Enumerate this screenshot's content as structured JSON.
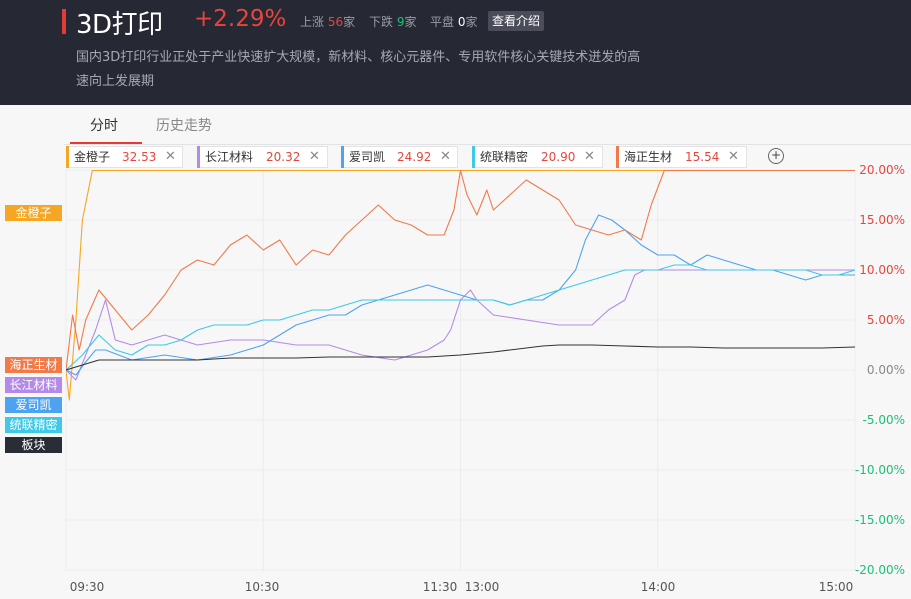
{
  "header": {
    "title": "3D打印",
    "change": "+2.29%",
    "up_label": "上涨",
    "up_count": "56",
    "up_unit": "家",
    "down_label": "下跌",
    "down_count": "9",
    "down_unit": "家",
    "flat_label": "平盘",
    "flat_count": "0",
    "flat_unit": "家",
    "intro_button": "查看介绍",
    "description_line1": "国内3D打印行业正处于产业快速扩大规模，新材料、核心元器件、专用软件核心关键技术迸发的高",
    "description_line2": "速向上发展期"
  },
  "tabs": [
    {
      "label": "分时"
    },
    {
      "label": "历史走势"
    }
  ],
  "chips": [
    {
      "name": "金橙子",
      "value": "32.53",
      "color": "#f5a623"
    },
    {
      "name": "长江材料",
      "value": "20.32",
      "color": "#b48ae8"
    },
    {
      "name": "爱司凯",
      "value": "24.92",
      "color": "#4da3f0"
    },
    {
      "name": "统联精密",
      "value": "20.90",
      "color": "#3ec9e6"
    },
    {
      "name": "海正生材",
      "value": "15.54",
      "color": "#f07a4a"
    }
  ],
  "side_labels": [
    {
      "name": "金橙子",
      "color": "#f5a623"
    },
    {
      "name": "海正生材",
      "color": "#f07a4a"
    },
    {
      "name": "长江材料",
      "color": "#b48ae8"
    },
    {
      "name": "爱司凯",
      "color": "#4da3f0"
    },
    {
      "name": "统联精密",
      "color": "#3ec9e6"
    },
    {
      "name": "板块",
      "color": "#2b2d36"
    }
  ],
  "chart_data": {
    "type": "line",
    "x_ticks": [
      "09:30",
      "10:30",
      "11:30",
      "13:00",
      "14:00",
      "15:00"
    ],
    "ylim": [
      -20,
      20
    ],
    "y_ticks": [
      "20.00%",
      "15.00%",
      "10.00%",
      "5.00%",
      "0.00%",
      "-5.00%",
      "-10.00%",
      "-15.00%",
      "-20.00%"
    ],
    "grid": true,
    "series": [
      {
        "name": "金橙子",
        "color": "#f5a623",
        "points": [
          [
            0,
            0
          ],
          [
            1,
            -3
          ],
          [
            3,
            5
          ],
          [
            5,
            15
          ],
          [
            8,
            20
          ],
          [
            240,
            20
          ]
        ]
      },
      {
        "name": "海正生材",
        "color": "#f07a4a",
        "points": [
          [
            0,
            0
          ],
          [
            2,
            5.5
          ],
          [
            4,
            2
          ],
          [
            6,
            5
          ],
          [
            10,
            8
          ],
          [
            15,
            6
          ],
          [
            20,
            4
          ],
          [
            25,
            5.5
          ],
          [
            30,
            7.5
          ],
          [
            35,
            10
          ],
          [
            40,
            11
          ],
          [
            45,
            10.5
          ],
          [
            50,
            12.5
          ],
          [
            55,
            13.5
          ],
          [
            60,
            12
          ],
          [
            65,
            13
          ],
          [
            70,
            10.5
          ],
          [
            75,
            12
          ],
          [
            80,
            11.5
          ],
          [
            85,
            13.5
          ],
          [
            90,
            15
          ],
          [
            95,
            16.5
          ],
          [
            100,
            15
          ],
          [
            105,
            14.5
          ],
          [
            110,
            13.5
          ],
          [
            115,
            13.5
          ],
          [
            118,
            16
          ],
          [
            120,
            20
          ],
          [
            122,
            17.5
          ],
          [
            125,
            15.5
          ],
          [
            128,
            18
          ],
          [
            130,
            16
          ],
          [
            135,
            17.5
          ],
          [
            140,
            19
          ],
          [
            145,
            18
          ],
          [
            150,
            17
          ],
          [
            155,
            14.5
          ],
          [
            160,
            14
          ],
          [
            165,
            13.5
          ],
          [
            170,
            14
          ],
          [
            175,
            13
          ],
          [
            178,
            16.5
          ],
          [
            182,
            20.5
          ],
          [
            186,
            21.5
          ],
          [
            190,
            20.5
          ],
          [
            240,
            20.5
          ]
        ]
      },
      {
        "name": "长江材料",
        "color": "#b48ae8",
        "points": [
          [
            0,
            0
          ],
          [
            3,
            -1
          ],
          [
            6,
            1.5
          ],
          [
            9,
            4
          ],
          [
            12,
            7
          ],
          [
            15,
            3
          ],
          [
            20,
            2.5
          ],
          [
            30,
            3.5
          ],
          [
            40,
            2.5
          ],
          [
            50,
            3
          ],
          [
            60,
            3
          ],
          [
            70,
            2.5
          ],
          [
            80,
            2.5
          ],
          [
            90,
            1.5
          ],
          [
            100,
            1
          ],
          [
            105,
            1.5
          ],
          [
            110,
            2
          ],
          [
            115,
            3
          ],
          [
            117,
            4
          ],
          [
            120,
            7
          ],
          [
            123,
            8
          ],
          [
            125,
            7
          ],
          [
            130,
            5.5
          ],
          [
            140,
            5
          ],
          [
            150,
            4.5
          ],
          [
            160,
            4.5
          ],
          [
            165,
            6
          ],
          [
            170,
            7
          ],
          [
            173,
            9.5
          ],
          [
            176,
            10
          ],
          [
            240,
            10
          ]
        ]
      },
      {
        "name": "爱司凯",
        "color": "#4da3f0",
        "points": [
          [
            0,
            0
          ],
          [
            3,
            -0.5
          ],
          [
            6,
            0.8
          ],
          [
            9,
            2
          ],
          [
            12,
            2
          ],
          [
            20,
            1
          ],
          [
            30,
            1.5
          ],
          [
            40,
            1
          ],
          [
            50,
            1.5
          ],
          [
            60,
            2.5
          ],
          [
            70,
            4.5
          ],
          [
            80,
            5.5
          ],
          [
            85,
            5.5
          ],
          [
            90,
            6.5
          ],
          [
            95,
            7
          ],
          [
            100,
            7.5
          ],
          [
            105,
            8
          ],
          [
            110,
            8.5
          ],
          [
            115,
            8
          ],
          [
            120,
            7.5
          ],
          [
            125,
            7
          ],
          [
            130,
            7
          ],
          [
            135,
            6.5
          ],
          [
            140,
            7
          ],
          [
            145,
            7
          ],
          [
            150,
            8
          ],
          [
            155,
            10
          ],
          [
            158,
            13
          ],
          [
            162,
            15.5
          ],
          [
            166,
            15
          ],
          [
            170,
            14
          ],
          [
            175,
            12.5
          ],
          [
            180,
            11.5
          ],
          [
            185,
            11.5
          ],
          [
            190,
            10.5
          ],
          [
            195,
            11.5
          ],
          [
            200,
            11
          ],
          [
            205,
            10.5
          ],
          [
            210,
            10
          ],
          [
            215,
            10
          ],
          [
            220,
            9.5
          ],
          [
            225,
            9
          ],
          [
            230,
            9.5
          ],
          [
            235,
            9.5
          ],
          [
            240,
            9.5
          ]
        ]
      },
      {
        "name": "统联精密",
        "color": "#3ec9e6",
        "points": [
          [
            0,
            0
          ],
          [
            5,
            1.5
          ],
          [
            10,
            3.5
          ],
          [
            15,
            2
          ],
          [
            20,
            1.5
          ],
          [
            25,
            2.5
          ],
          [
            30,
            2.5
          ],
          [
            35,
            3
          ],
          [
            40,
            4
          ],
          [
            45,
            4.5
          ],
          [
            50,
            4.5
          ],
          [
            55,
            4.5
          ],
          [
            60,
            5
          ],
          [
            65,
            5
          ],
          [
            70,
            5.5
          ],
          [
            75,
            6
          ],
          [
            80,
            6
          ],
          [
            85,
            6.5
          ],
          [
            90,
            7
          ],
          [
            95,
            7
          ],
          [
            100,
            7
          ],
          [
            105,
            7
          ],
          [
            110,
            7
          ],
          [
            115,
            7
          ],
          [
            120,
            7
          ],
          [
            125,
            7
          ],
          [
            130,
            7
          ],
          [
            135,
            6.5
          ],
          [
            140,
            7
          ],
          [
            145,
            7.5
          ],
          [
            150,
            8
          ],
          [
            155,
            8.5
          ],
          [
            160,
            9
          ],
          [
            165,
            9.5
          ],
          [
            170,
            10
          ],
          [
            175,
            10
          ],
          [
            180,
            10
          ],
          [
            185,
            10.5
          ],
          [
            190,
            10.5
          ],
          [
            195,
            10
          ],
          [
            200,
            10
          ],
          [
            205,
            10
          ],
          [
            210,
            10
          ],
          [
            215,
            10
          ],
          [
            220,
            10
          ],
          [
            225,
            10
          ],
          [
            230,
            9.5
          ],
          [
            235,
            9.5
          ],
          [
            240,
            10
          ]
        ]
      },
      {
        "name": "板块",
        "color": "#333333",
        "points": [
          [
            0,
            0
          ],
          [
            5,
            0.5
          ],
          [
            10,
            1
          ],
          [
            20,
            1
          ],
          [
            30,
            1
          ],
          [
            40,
            1
          ],
          [
            50,
            1.2
          ],
          [
            60,
            1.2
          ],
          [
            70,
            1.2
          ],
          [
            80,
            1.3
          ],
          [
            90,
            1.3
          ],
          [
            100,
            1.3
          ],
          [
            110,
            1.3
          ],
          [
            120,
            1.5
          ],
          [
            130,
            1.8
          ],
          [
            135,
            2
          ],
          [
            140,
            2.2
          ],
          [
            145,
            2.4
          ],
          [
            150,
            2.5
          ],
          [
            155,
            2.5
          ],
          [
            160,
            2.5
          ],
          [
            170,
            2.4
          ],
          [
            180,
            2.3
          ],
          [
            190,
            2.3
          ],
          [
            200,
            2.2
          ],
          [
            210,
            2.2
          ],
          [
            220,
            2.2
          ],
          [
            230,
            2.2
          ],
          [
            240,
            2.3
          ]
        ]
      }
    ]
  }
}
